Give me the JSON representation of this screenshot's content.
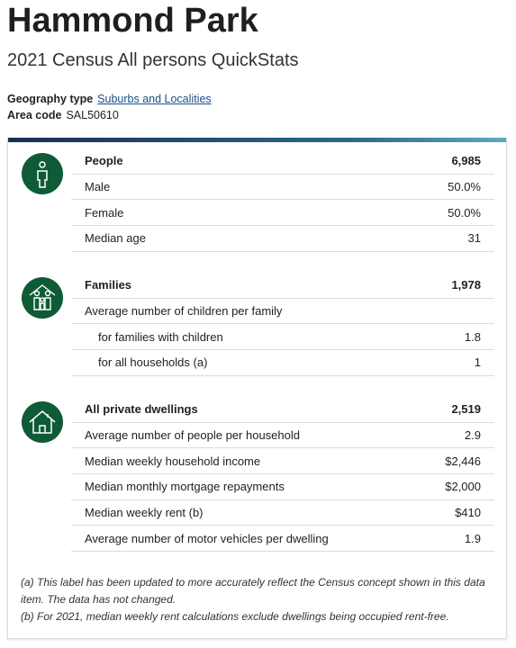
{
  "header": {
    "title": "Hammond Park",
    "subtitle": "2021 Census All persons QuickStats"
  },
  "meta": {
    "geography_label": "Geography type",
    "geography_value": "Suburbs and Localities",
    "area_label": "Area code",
    "area_value": "SAL50610"
  },
  "sections": [
    {
      "heading": "People",
      "value": "6,985",
      "rows": [
        {
          "label": "Male",
          "value": "50.0%"
        },
        {
          "label": "Female",
          "value": "50.0%"
        },
        {
          "label": "Median age",
          "value": "31"
        }
      ]
    },
    {
      "heading": "Families",
      "value": "1,978",
      "rows": [
        {
          "label": "Average number of children per family"
        },
        {
          "label": "for families with children",
          "value": "1.8"
        },
        {
          "label": "for all households (a)",
          "value": "1"
        }
      ]
    },
    {
      "heading": "All private dwellings",
      "value": "2,519",
      "rows": [
        {
          "label": "Average number of people per household",
          "value": "2.9"
        },
        {
          "label": "Median weekly household income",
          "value": "$2,446"
        },
        {
          "label": "Median monthly mortgage repayments",
          "value": "$2,000"
        },
        {
          "label": "Median weekly rent (b)",
          "value": "$410"
        },
        {
          "label": "Average number of motor vehicles per dwelling",
          "value": "1.9"
        }
      ]
    }
  ],
  "footnotes": [
    "(a) This label has been updated to more accurately reflect the Census concept shown in this data item. The data has not changed.",
    "(b) For 2021, median weekly rent calculations exclude dwellings being occupied rent-free."
  ]
}
